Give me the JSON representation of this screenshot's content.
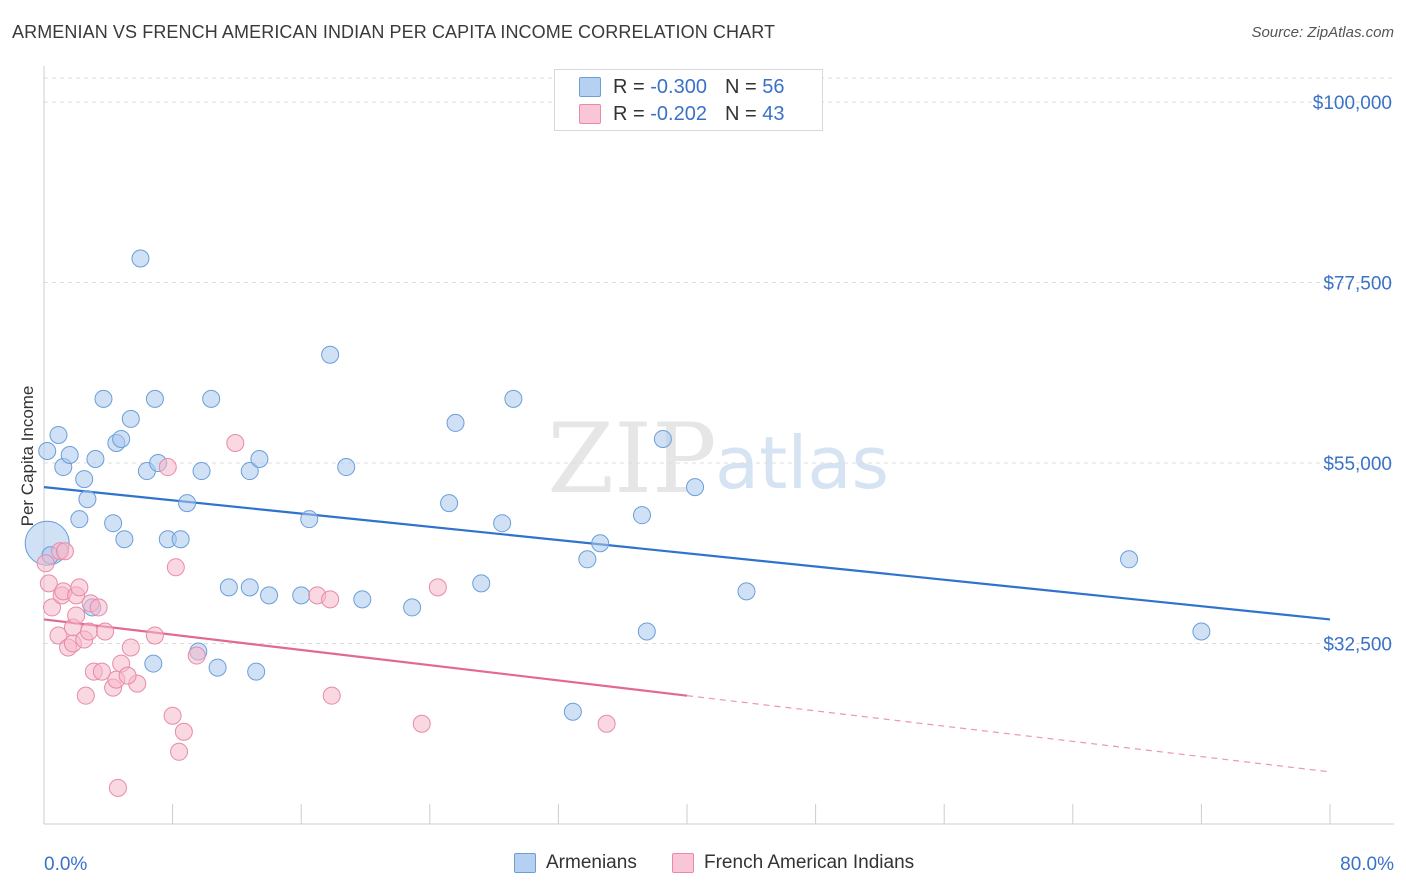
{
  "title": "ARMENIAN VS FRENCH AMERICAN INDIAN PER CAPITA INCOME CORRELATION CHART",
  "source": "Source: ZipAtlas.com",
  "watermark": {
    "zip": "ZIP",
    "atlas": "atlas"
  },
  "colors": {
    "blue_fill": "#a9c9ef",
    "blue_stroke": "#6a9fd8",
    "blue_line": "#2f73cc",
    "pink_fill": "#f5b8cb",
    "pink_stroke": "#e88aa8",
    "pink_line": "#e26a92",
    "axis_text": "#3a72c8",
    "grid": "#dddddd"
  },
  "legend": {
    "rows": [
      {
        "r_label": "R =",
        "r_value": "-0.300",
        "n_label": "N =",
        "n_value": "56"
      },
      {
        "r_label": "R =",
        "r_value": "-0.202",
        "n_label": "N =",
        "n_value": "43"
      }
    ]
  },
  "bottom_legend": [
    "Armenians",
    "French American Indians"
  ],
  "chart_data": {
    "type": "scatter",
    "title": "ARMENIAN VS FRENCH AMERICAN INDIAN PER CAPITA INCOME CORRELATION CHART",
    "xlabel": "",
    "ylabel": "Per Capita Income",
    "xlim": [
      0,
      80
    ],
    "ylim": [
      10000,
      103000
    ],
    "x_tick_labels": [
      "0.0%",
      "80.0%"
    ],
    "y_ticks": [
      32500,
      55000,
      77500,
      100000
    ],
    "y_tick_labels": [
      "$32,500",
      "$55,000",
      "$77,500",
      "$100,000"
    ],
    "grid": "horizontal dashed",
    "legend_position": "top-center",
    "series": [
      {
        "name": "Armenians",
        "points": [
          [
            0.2,
            45000
          ],
          [
            0.2,
            56500
          ],
          [
            0.9,
            58500
          ],
          [
            1.2,
            54500
          ],
          [
            1.6,
            56000
          ],
          [
            2.2,
            48000
          ],
          [
            2.5,
            53000
          ],
          [
            2.7,
            50500
          ],
          [
            3.2,
            55500
          ],
          [
            3.7,
            63000
          ],
          [
            4.3,
            47500
          ],
          [
            4.5,
            57500
          ],
          [
            4.8,
            58000
          ],
          [
            5.0,
            45500
          ],
          [
            5.4,
            60500
          ],
          [
            6.0,
            80500
          ],
          [
            6.4,
            54000
          ],
          [
            6.9,
            63000
          ],
          [
            6.8,
            30000
          ],
          [
            7.1,
            55000
          ],
          [
            7.7,
            45500
          ],
          [
            8.5,
            45500
          ],
          [
            8.9,
            50000
          ],
          [
            9.6,
            31500
          ],
          [
            9.8,
            54000
          ],
          [
            10.4,
            63000
          ],
          [
            10.8,
            29500
          ],
          [
            11.5,
            39500
          ],
          [
            12.8,
            39500
          ],
          [
            12.8,
            54000
          ],
          [
            13.2,
            29000
          ],
          [
            13.4,
            55500
          ],
          [
            14.0,
            38500
          ],
          [
            16.0,
            38500
          ],
          [
            16.5,
            48000
          ],
          [
            17.8,
            68500
          ],
          [
            18.8,
            54500
          ],
          [
            19.8,
            38000
          ],
          [
            22.9,
            37000
          ],
          [
            25.2,
            50000
          ],
          [
            25.6,
            60000
          ],
          [
            27.2,
            40000
          ],
          [
            28.5,
            47500
          ],
          [
            29.2,
            63000
          ],
          [
            32.9,
            24000
          ],
          [
            33.8,
            43000
          ],
          [
            34.6,
            45000
          ],
          [
            37.2,
            48500
          ],
          [
            37.5,
            34000
          ],
          [
            38.5,
            58000
          ],
          [
            40.5,
            52000
          ],
          [
            43.7,
            39000
          ],
          [
            67.5,
            43000
          ],
          [
            72.0,
            34000
          ],
          [
            0.4,
            43500
          ],
          [
            3.0,
            37000
          ]
        ]
      },
      {
        "name": "French American Indians",
        "points": [
          [
            0.1,
            42500
          ],
          [
            0.3,
            40000
          ],
          [
            0.5,
            37000
          ],
          [
            0.9,
            33500
          ],
          [
            1.0,
            44000
          ],
          [
            1.1,
            38500
          ],
          [
            1.2,
            39000
          ],
          [
            1.5,
            32000
          ],
          [
            1.8,
            34500
          ],
          [
            1.8,
            32500
          ],
          [
            2.0,
            38500
          ],
          [
            2.2,
            39500
          ],
          [
            2.5,
            33000
          ],
          [
            2.6,
            26000
          ],
          [
            2.8,
            34000
          ],
          [
            2.9,
            37500
          ],
          [
            3.1,
            29000
          ],
          [
            3.4,
            37000
          ],
          [
            3.6,
            29000
          ],
          [
            3.8,
            34000
          ],
          [
            4.3,
            27000
          ],
          [
            4.5,
            28000
          ],
          [
            4.8,
            30000
          ],
          [
            5.4,
            32000
          ],
          [
            5.8,
            27500
          ],
          [
            6.9,
            33500
          ],
          [
            7.7,
            54500
          ],
          [
            8.0,
            23500
          ],
          [
            8.2,
            42000
          ],
          [
            8.4,
            19000
          ],
          [
            8.7,
            21500
          ],
          [
            9.5,
            31000
          ],
          [
            11.9,
            57500
          ],
          [
            17.0,
            38500
          ],
          [
            17.8,
            38000
          ],
          [
            17.9,
            26000
          ],
          [
            23.5,
            22500
          ],
          [
            24.5,
            39500
          ],
          [
            35.0,
            22500
          ],
          [
            4.6,
            14500
          ],
          [
            1.3,
            44000
          ],
          [
            2.0,
            36000
          ],
          [
            5.2,
            28500
          ]
        ]
      }
    ],
    "trend_lines": [
      {
        "series": "Armenians",
        "x": [
          0,
          80
        ],
        "y": [
          52000,
          35500
        ]
      },
      {
        "series": "French American Indians",
        "x": [
          0,
          40
        ],
        "y": [
          35500,
          26000
        ],
        "dashed_extension": {
          "x": [
            40,
            80
          ],
          "y": [
            26000,
            16500
          ]
        }
      }
    ]
  }
}
